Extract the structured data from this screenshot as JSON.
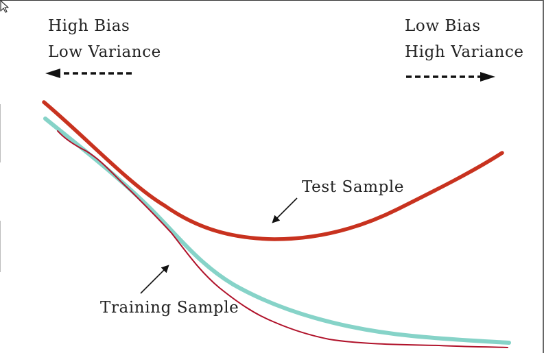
{
  "chart_data": {
    "type": "line",
    "title": "",
    "xlabel": "",
    "ylabel": "",
    "grid": false,
    "corner_labels": {
      "left": [
        "High Bias",
        "Low Variance"
      ],
      "right": [
        "Low Bias",
        "High Variance"
      ]
    },
    "series": [
      {
        "name": "Test Sample",
        "color": "#c8321f",
        "shape": "U-shaped: decreases, reaches a minimum, then increases"
      },
      {
        "name": "Training Sample",
        "color": "#86d3c8",
        "shape": "monotonically decreasing"
      }
    ],
    "annotations": [
      {
        "text": "Test Sample",
        "target": "Test Sample"
      },
      {
        "text": "Training Sample",
        "target": "Training Sample"
      }
    ],
    "colors": {
      "test_curve": "#c8321f",
      "training_curve": "#86d3c8",
      "training_overlay": "#b0122a",
      "text": "#222222"
    }
  }
}
